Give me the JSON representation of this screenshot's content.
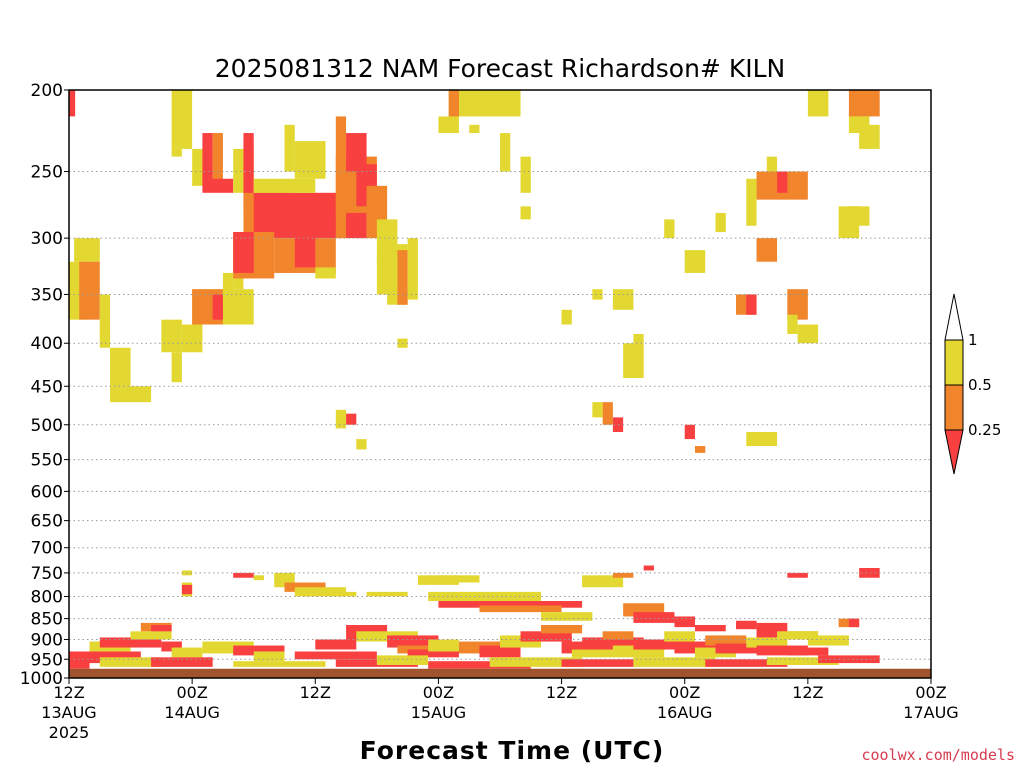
{
  "chart_data": {
    "type": "heatmap",
    "title": "2025081312 NAM Forecast Richardson# KILN",
    "xlabel": "Forecast Time (UTC)",
    "ylabel": "",
    "credit": "coolwx.com/models",
    "y_axis": {
      "scale": "pressure (reversed)",
      "ylim": [
        200,
        1000
      ],
      "ticks": [
        200,
        250,
        300,
        350,
        400,
        450,
        500,
        550,
        600,
        650,
        700,
        750,
        800,
        850,
        900,
        950,
        1000
      ]
    },
    "x_axis": {
      "xlim": [
        "2025-08-13T12",
        "2025-08-17T00"
      ],
      "ticks": [
        {
          "t": "2025-08-13T12",
          "hour": "12Z",
          "date": "13AUG",
          "year": "2025"
        },
        {
          "t": "2025-08-14T00",
          "hour": "00Z",
          "date": "14AUG",
          "year": ""
        },
        {
          "t": "2025-08-14T12",
          "hour": "12Z",
          "date": "",
          "year": ""
        },
        {
          "t": "2025-08-15T00",
          "hour": "00Z",
          "date": "15AUG",
          "year": ""
        },
        {
          "t": "2025-08-15T12",
          "hour": "12Z",
          "date": "",
          "year": ""
        },
        {
          "t": "2025-08-16T00",
          "hour": "00Z",
          "date": "16AUG",
          "year": ""
        },
        {
          "t": "2025-08-16T12",
          "hour": "12Z",
          "date": "",
          "year": ""
        },
        {
          "t": "2025-08-17T00",
          "hour": "00Z",
          "date": "17AUG",
          "year": ""
        }
      ]
    },
    "grid": "horizontal dotted at pressure ticks",
    "legend": {
      "placement": "right",
      "levels": [
        "0.25",
        "0.5",
        "1"
      ],
      "colors": {
        "lt_0.25": "#f94040",
        "0.25_0.5": "#f0852b",
        "0.5_1": "#e3d832",
        "gt_1": "#ffffff"
      }
    },
    "surface_fill": {
      "color": "#a0542d",
      "p_top": 975
    },
    "colors": {
      "red": "#f94040",
      "orange": "#f0852b",
      "yellow": "#e3d832"
    },
    "note_cells": "cells: [hour_start, hour_end, p_top, p_bottom, class] with hours after 2025-08-13 12Z; class r=<0.25, o=0.25-0.5, y=0.5-1",
    "cells": [
      [
        0,
        0.6,
        200,
        215,
        "r"
      ],
      [
        0.5,
        3,
        300,
        320,
        "y"
      ],
      [
        0,
        1.5,
        320,
        375,
        "y"
      ],
      [
        1,
        3,
        320,
        375,
        "o"
      ],
      [
        3,
        4,
        350,
        390,
        "y"
      ],
      [
        3,
        4,
        380,
        405,
        "y"
      ],
      [
        4,
        6,
        405,
        450,
        "y"
      ],
      [
        4,
        8,
        450,
        470,
        "y"
      ],
      [
        10,
        12,
        200,
        235,
        "y"
      ],
      [
        10,
        11,
        235,
        240,
        "y"
      ],
      [
        12,
        14,
        235,
        260,
        "y"
      ],
      [
        13,
        14,
        225,
        260,
        "r"
      ],
      [
        14,
        15,
        225,
        262,
        "o"
      ],
      [
        13,
        16,
        255,
        265,
        "r"
      ],
      [
        11,
        13,
        380,
        410,
        "y"
      ],
      [
        9,
        11,
        375,
        410,
        "y"
      ],
      [
        10,
        11,
        410,
        445,
        "y"
      ],
      [
        12,
        18,
        345,
        380,
        "y"
      ],
      [
        12,
        15,
        345,
        380,
        "o"
      ],
      [
        14,
        15,
        350,
        375,
        "r"
      ],
      [
        15,
        16,
        330,
        355,
        "y"
      ],
      [
        16,
        17,
        295,
        345,
        "y"
      ],
      [
        16,
        18,
        235,
        265,
        "y"
      ],
      [
        17,
        18,
        225,
        280,
        "r"
      ],
      [
        17,
        22,
        265,
        295,
        "o"
      ],
      [
        18,
        29,
        265,
        300,
        "r"
      ],
      [
        16,
        20,
        295,
        335,
        "o"
      ],
      [
        16,
        18,
        295,
        330,
        "r"
      ],
      [
        20,
        26,
        300,
        330,
        "o"
      ],
      [
        22,
        24,
        295,
        325,
        "r"
      ],
      [
        18,
        24,
        255,
        265,
        "y"
      ],
      [
        21,
        22,
        220,
        250,
        "y"
      ],
      [
        22,
        25,
        230,
        255,
        "y"
      ],
      [
        24,
        26,
        325,
        335,
        "y"
      ],
      [
        26,
        30,
        240,
        280,
        "o"
      ],
      [
        26,
        27,
        215,
        300,
        "o"
      ],
      [
        27,
        29,
        225,
        250,
        "r"
      ],
      [
        28,
        30,
        245,
        275,
        "r"
      ],
      [
        29,
        31,
        260,
        300,
        "o"
      ],
      [
        30,
        32,
        285,
        320,
        "y"
      ],
      [
        31,
        33,
        305,
        360,
        "y"
      ],
      [
        32,
        33,
        310,
        360,
        "o"
      ],
      [
        30,
        32,
        315,
        350,
        "y"
      ],
      [
        33,
        34,
        300,
        355,
        "y"
      ],
      [
        37,
        38,
        200,
        215,
        "y"
      ],
      [
        36,
        38,
        215,
        225,
        "y"
      ],
      [
        38,
        44,
        200,
        215,
        "y"
      ],
      [
        37,
        38,
        200,
        215,
        "o"
      ],
      [
        44,
        45,
        275,
        285,
        "y"
      ],
      [
        39,
        40,
        220,
        225,
        "y"
      ],
      [
        42,
        43,
        225,
        250,
        "y"
      ],
      [
        44,
        45,
        240,
        265,
        "y"
      ],
      [
        48,
        49,
        365,
        380,
        "y"
      ],
      [
        53,
        55,
        345,
        365,
        "y"
      ],
      [
        32,
        33,
        395,
        405,
        "y"
      ],
      [
        26,
        27,
        480,
        505,
        "y"
      ],
      [
        27,
        28,
        485,
        500,
        "r"
      ],
      [
        28,
        29,
        520,
        535,
        "y"
      ],
      [
        51,
        52,
        345,
        355,
        "y"
      ],
      [
        53,
        54,
        490,
        510,
        "r"
      ],
      [
        52,
        53,
        470,
        500,
        "o"
      ],
      [
        51,
        52,
        470,
        490,
        "y"
      ],
      [
        54,
        56,
        400,
        440,
        "y"
      ],
      [
        55,
        56,
        390,
        400,
        "y"
      ],
      [
        58,
        59,
        285,
        300,
        "y"
      ],
      [
        60,
        61,
        500,
        520,
        "r"
      ],
      [
        61,
        62,
        530,
        540,
        "o"
      ],
      [
        63,
        64,
        280,
        295,
        "y"
      ],
      [
        66,
        69,
        510,
        530,
        "y"
      ],
      [
        60,
        62,
        310,
        330,
        "y"
      ],
      [
        67,
        69,
        300,
        320,
        "o"
      ],
      [
        68,
        69,
        240,
        250,
        "y"
      ],
      [
        67,
        72,
        250,
        270,
        "o"
      ],
      [
        69,
        70,
        250,
        265,
        "r"
      ],
      [
        66,
        67,
        255,
        290,
        "y"
      ],
      [
        70,
        72,
        345,
        375,
        "o"
      ],
      [
        70,
        71,
        370,
        390,
        "y"
      ],
      [
        71,
        73,
        380,
        400,
        "y"
      ],
      [
        72,
        74,
        200,
        215,
        "y"
      ],
      [
        76,
        79,
        200,
        215,
        "o"
      ],
      [
        76,
        78,
        215,
        225,
        "y"
      ],
      [
        77,
        79,
        220,
        235,
        "y"
      ],
      [
        76,
        77,
        275,
        290,
        "o"
      ],
      [
        75,
        77,
        275,
        300,
        "y"
      ],
      [
        76,
        78,
        275,
        290,
        "y"
      ],
      [
        65,
        67,
        350,
        370,
        "o"
      ],
      [
        66,
        67,
        350,
        370,
        "r"
      ],
      [
        11,
        12,
        745,
        755,
        "y"
      ],
      [
        11,
        12,
        770,
        800,
        "y"
      ],
      [
        11,
        12,
        775,
        795,
        "r"
      ],
      [
        16,
        18,
        750,
        760,
        "r"
      ],
      [
        18,
        19,
        755,
        765,
        "y"
      ],
      [
        20,
        22,
        750,
        780,
        "y"
      ],
      [
        21,
        25,
        770,
        790,
        "o"
      ],
      [
        22,
        27,
        780,
        800,
        "y"
      ],
      [
        25,
        28,
        790,
        800,
        "y"
      ],
      [
        29,
        33,
        790,
        800,
        "y"
      ],
      [
        34,
        38,
        755,
        775,
        "y"
      ],
      [
        36,
        40,
        755,
        770,
        "y"
      ],
      [
        35,
        46,
        790,
        810,
        "y"
      ],
      [
        36,
        50,
        810,
        825,
        "r"
      ],
      [
        40,
        48,
        820,
        835,
        "o"
      ],
      [
        46,
        51,
        835,
        855,
        "y"
      ],
      [
        50,
        54,
        755,
        780,
        "y"
      ],
      [
        53,
        55,
        750,
        760,
        "o"
      ],
      [
        56,
        57,
        735,
        745,
        "r"
      ],
      [
        54,
        58,
        815,
        845,
        "o"
      ],
      [
        55,
        59,
        835,
        860,
        "r"
      ],
      [
        59,
        61,
        845,
        870,
        "r"
      ],
      [
        61,
        64,
        865,
        880,
        "r"
      ],
      [
        65,
        67,
        855,
        875,
        "r"
      ],
      [
        67,
        70,
        860,
        895,
        "r"
      ],
      [
        70,
        73,
        880,
        900,
        "o"
      ],
      [
        70,
        72,
        750,
        760,
        "r"
      ],
      [
        77,
        79,
        740,
        760,
        "r"
      ],
      [
        75,
        77,
        850,
        870,
        "o"
      ],
      [
        76,
        77,
        850,
        870,
        "r"
      ],
      [
        2,
        6,
        905,
        930,
        "y"
      ],
      [
        3,
        9,
        895,
        920,
        "r"
      ],
      [
        6,
        10,
        880,
        900,
        "y"
      ],
      [
        7,
        10,
        860,
        880,
        "o"
      ],
      [
        8,
        10,
        865,
        880,
        "r"
      ],
      [
        9,
        11,
        905,
        930,
        "r"
      ],
      [
        10,
        13,
        920,
        945,
        "y"
      ],
      [
        13,
        18,
        905,
        935,
        "y"
      ],
      [
        16,
        21,
        915,
        940,
        "r"
      ],
      [
        18,
        21,
        930,
        955,
        "y"
      ],
      [
        22,
        30,
        930,
        950,
        "r"
      ],
      [
        24,
        28,
        900,
        925,
        "r"
      ],
      [
        27,
        31,
        865,
        900,
        "r"
      ],
      [
        28,
        34,
        880,
        905,
        "y"
      ],
      [
        31,
        36,
        890,
        920,
        "r"
      ],
      [
        32,
        36,
        915,
        935,
        "o"
      ],
      [
        33,
        38,
        925,
        945,
        "r"
      ],
      [
        35,
        38,
        900,
        930,
        "y"
      ],
      [
        38,
        43,
        905,
        935,
        "o"
      ],
      [
        40,
        44,
        915,
        945,
        "r"
      ],
      [
        42,
        46,
        890,
        920,
        "y"
      ],
      [
        44,
        49,
        880,
        905,
        "r"
      ],
      [
        46,
        50,
        865,
        885,
        "o"
      ],
      [
        48,
        52,
        905,
        935,
        "r"
      ],
      [
        49,
        53,
        925,
        945,
        "y"
      ],
      [
        50,
        56,
        895,
        925,
        "r"
      ],
      [
        52,
        55,
        880,
        900,
        "o"
      ],
      [
        53,
        58,
        915,
        945,
        "y"
      ],
      [
        55,
        60,
        900,
        925,
        "r"
      ],
      [
        58,
        61,
        880,
        905,
        "y"
      ],
      [
        59,
        63,
        905,
        935,
        "r"
      ],
      [
        61,
        65,
        920,
        945,
        "y"
      ],
      [
        62,
        66,
        890,
        915,
        "o"
      ],
      [
        63,
        68,
        910,
        935,
        "r"
      ],
      [
        66,
        70,
        895,
        920,
        "y"
      ],
      [
        67,
        72,
        915,
        940,
        "r"
      ],
      [
        69,
        73,
        880,
        900,
        "y"
      ],
      [
        70,
        74,
        920,
        940,
        "r"
      ],
      [
        72,
        76,
        890,
        915,
        "y"
      ],
      [
        0,
        7,
        930,
        960,
        "r"
      ],
      [
        0,
        2,
        945,
        975,
        "r"
      ],
      [
        3,
        9,
        945,
        970,
        "y"
      ],
      [
        8,
        14,
        945,
        970,
        "r"
      ],
      [
        16,
        25,
        955,
        970,
        "y"
      ],
      [
        26,
        34,
        950,
        970,
        "r"
      ],
      [
        30,
        35,
        940,
        965,
        "y"
      ],
      [
        35,
        45,
        955,
        975,
        "r"
      ],
      [
        41,
        50,
        945,
        970,
        "y"
      ],
      [
        48,
        55,
        950,
        970,
        "r"
      ],
      [
        55,
        63,
        945,
        970,
        "y"
      ],
      [
        62,
        70,
        950,
        970,
        "r"
      ],
      [
        68,
        75,
        945,
        965,
        "y"
      ],
      [
        73,
        79,
        940,
        960,
        "r"
      ]
    ]
  }
}
